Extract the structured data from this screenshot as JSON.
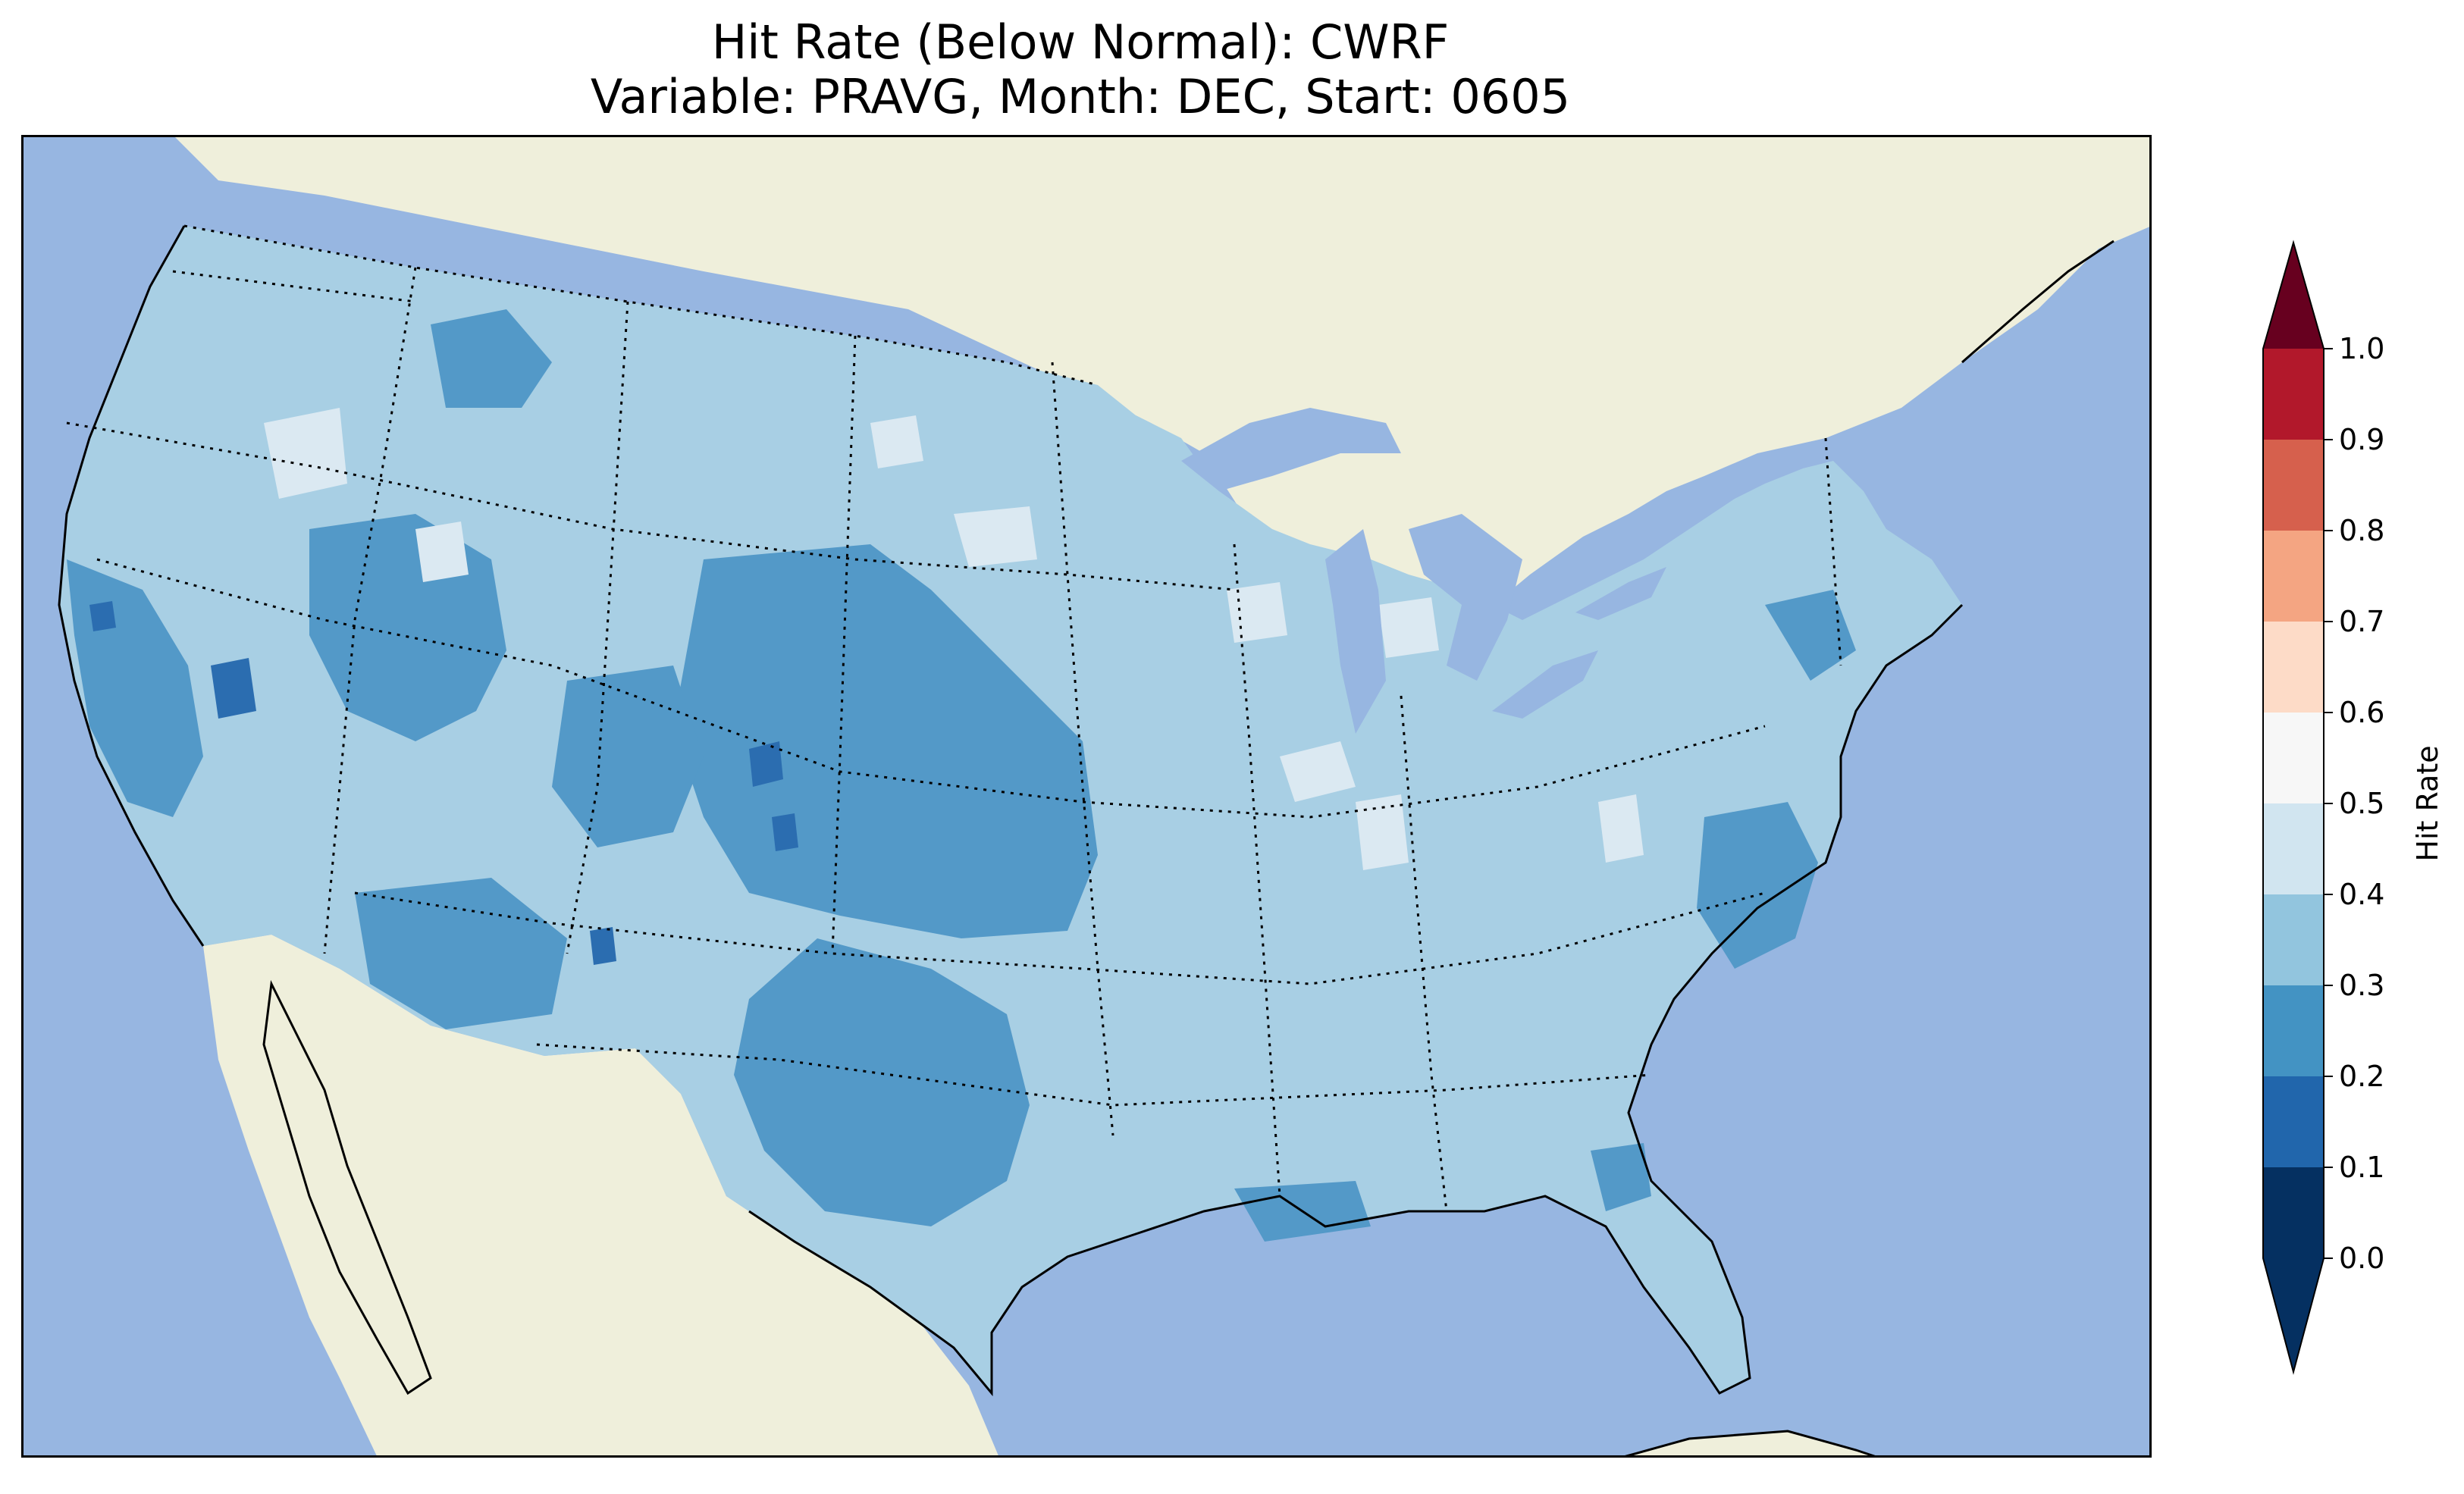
{
  "title": {
    "line1": "Hit Rate (Below Normal): CWRF",
    "line2": "Variable: PRAVG, Month: DEC, Start: 0605"
  },
  "map": {
    "projection": "Lambert Conformal",
    "region": "Contiguous United States",
    "variable": "PRAVG",
    "month": "DEC",
    "start": "0605",
    "model": "CWRF",
    "ocean_color": "#97b6e1",
    "land_color": "#efefdb",
    "coastline_color": "#000000",
    "state_border_style": "dotted"
  },
  "colorbar": {
    "label": "Hit Rate",
    "ticks": [
      "0.0",
      "0.1",
      "0.2",
      "0.3",
      "0.4",
      "0.5",
      "0.6",
      "0.7",
      "0.8",
      "0.9",
      "1.0"
    ],
    "bins": [
      {
        "range": [
          0.0,
          0.1
        ],
        "color": "#053061"
      },
      {
        "range": [
          0.1,
          0.2
        ],
        "color": "#2166ac"
      },
      {
        "range": [
          0.2,
          0.3
        ],
        "color": "#4393c3"
      },
      {
        "range": [
          0.3,
          0.4
        ],
        "color": "#92c5de"
      },
      {
        "range": [
          0.4,
          0.5
        ],
        "color": "#d1e5f0"
      },
      {
        "range": [
          0.5,
          0.6
        ],
        "color": "#f7f7f7"
      },
      {
        "range": [
          0.6,
          0.7
        ],
        "color": "#fddbc7"
      },
      {
        "range": [
          0.7,
          0.8
        ],
        "color": "#f4a582"
      },
      {
        "range": [
          0.8,
          0.9
        ],
        "color": "#d6604d"
      },
      {
        "range": [
          0.9,
          1.0
        ],
        "color": "#b2182b"
      }
    ],
    "extend_low_color": "#053061",
    "extend_high_color": "#67001f"
  }
}
